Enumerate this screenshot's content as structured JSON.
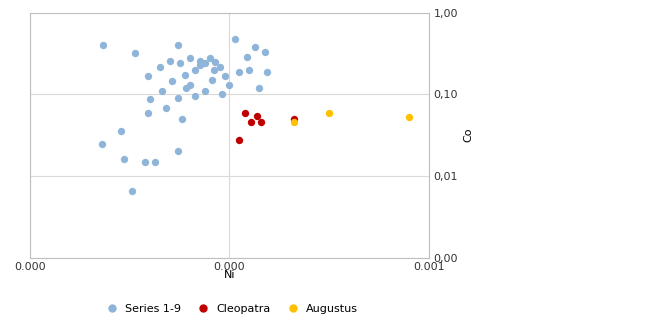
{
  "chart_data": {
    "type": "scatter",
    "x_label": "Ni",
    "y_label": "Co",
    "xlim": [
      0,
      0.001
    ],
    "xticks": [
      {
        "value": 0,
        "label": "0.000"
      },
      {
        "value": 0.0005,
        "label": "0.000"
      },
      0.001
    ],
    "ylim": [
      0.001,
      1
    ],
    "yticks": [
      {
        "value": 0.001,
        "label": "0,00"
      },
      {
        "value": 0.01,
        "label": "0,01"
      },
      {
        "value": 0.1,
        "label": "0,10"
      },
      {
        "value": 1,
        "label": "1,00"
      }
    ],
    "log": "y",
    "grid": true,
    "legend": "lower center",
    "series": [
      {
        "name": "Series 1-9",
        "color": "#8fb4d9",
        "marker": "circle",
        "x": [
          0.000183,
          0.000263,
          0.000295,
          0.00037,
          0.00046,
          0.000515,
          0.000565,
          0.000588,
          0.000595,
          0.000575,
          0.00018,
          0.000228,
          0.000235,
          0.000288,
          0.000313,
          0.000255,
          0.00037,
          0.00038,
          0.000295,
          0.00034,
          0.0003,
          0.00033,
          0.000355,
          0.000388,
          0.0004,
          0.000425,
          0.000438,
          0.000325,
          0.00035,
          0.000375,
          0.0004,
          0.000413,
          0.000425,
          0.000438,
          0.00045,
          0.000463,
          0.000475,
          0.000488,
          0.0005,
          0.000455,
          0.000413,
          0.00037,
          0.00048,
          0.000525,
          0.00055,
          0.000545,
          0.00039
        ],
        "y": [
          0.4,
          0.32,
          0.17,
          0.4,
          0.2,
          0.48,
          0.38,
          0.33,
          0.19,
          0.12,
          0.025,
          0.036,
          0.016,
          0.015,
          0.015,
          0.0066,
          0.02,
          0.05,
          0.06,
          0.068,
          0.088,
          0.11,
          0.147,
          0.175,
          0.13,
          0.23,
          0.11,
          0.215,
          0.26,
          0.24,
          0.28,
          0.2,
          0.26,
          0.24,
          0.28,
          0.25,
          0.22,
          0.17,
          0.13,
          0.15,
          0.095,
          0.09,
          0.1,
          0.19,
          0.2,
          0.29,
          0.12
        ]
      },
      {
        "name": "Cleopatra",
        "color": "#c00000",
        "marker": "circle",
        "x": [
          0.000538,
          0.00057,
          0.000525,
          0.00058,
          0.000555,
          0.000663
        ],
        "y": [
          0.06,
          0.055,
          0.028,
          0.046,
          0.046,
          0.05
        ]
      },
      {
        "name": "Augustus",
        "color": "#ffc000",
        "marker": "circle",
        "x": [
          0.000663,
          0.00075,
          0.00095
        ],
        "y": [
          0.046,
          0.06,
          0.053
        ]
      }
    ]
  }
}
